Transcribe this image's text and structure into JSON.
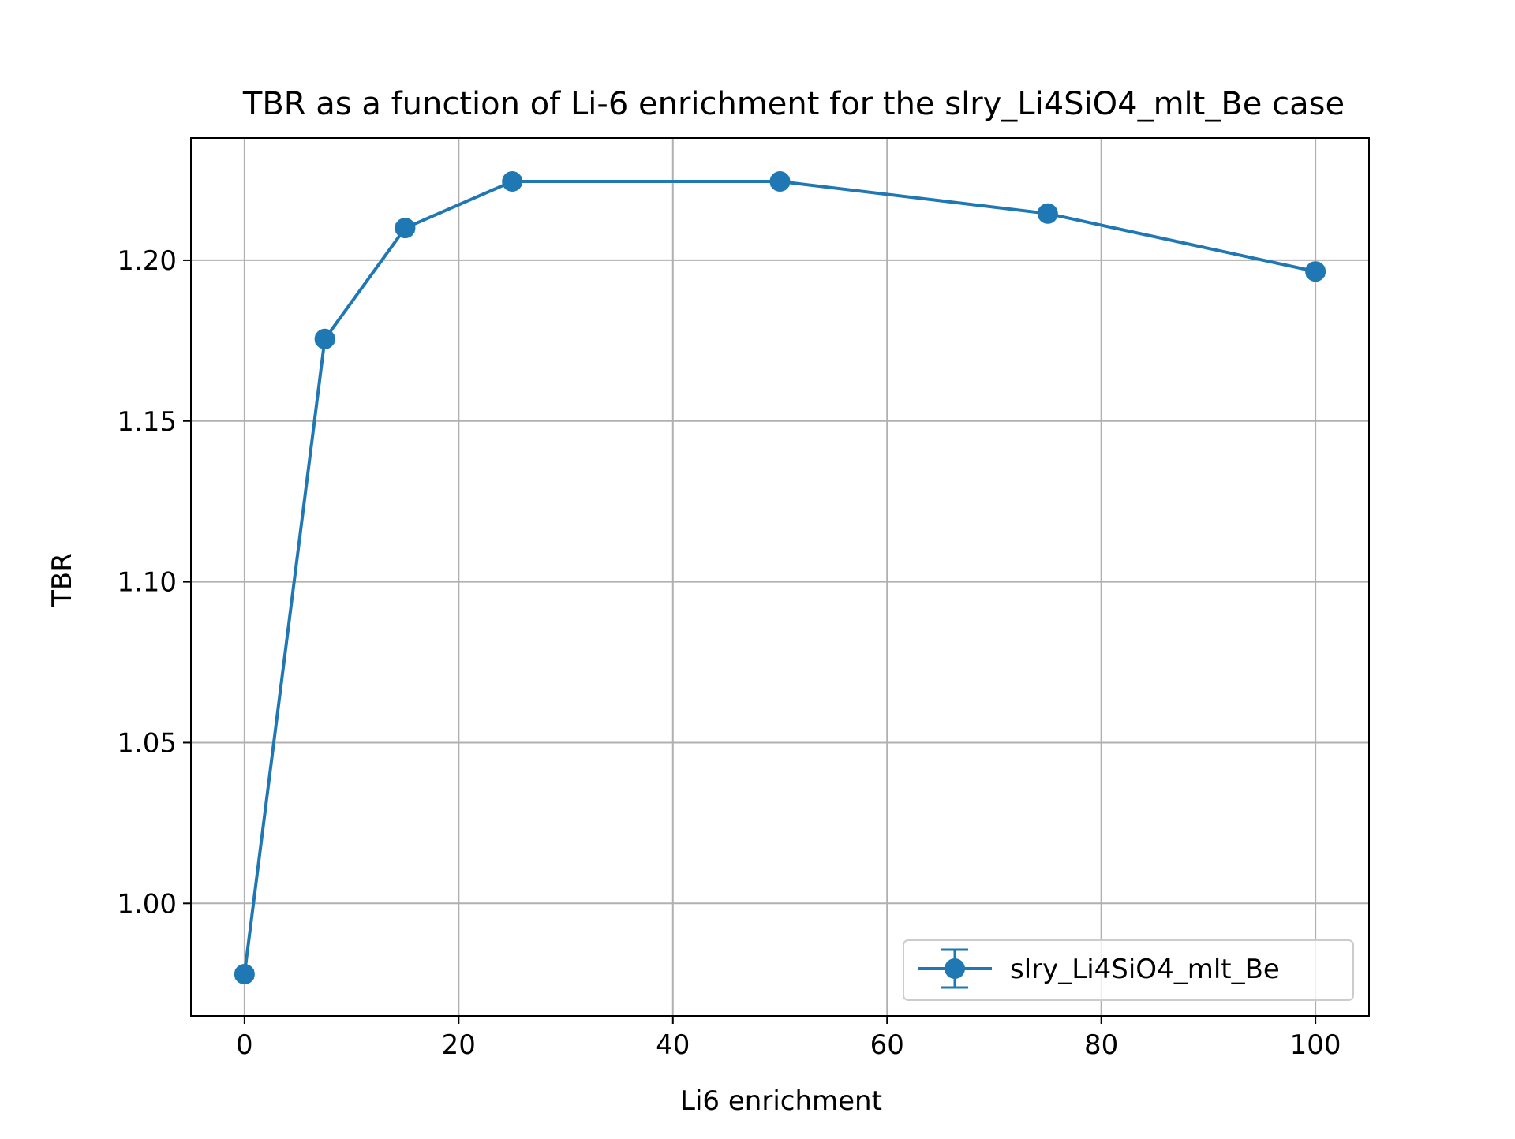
{
  "chart_data": {
    "type": "line",
    "title": "TBR as a function of Li-6 enrichment for the slry_Li4SiO4_mlt_Be case",
    "xlabel": "Li6 enrichment",
    "ylabel": "TBR",
    "xlim": [
      -5,
      105
    ],
    "ylim": [
      0.965,
      1.238
    ],
    "xticks": [
      0,
      20,
      40,
      60,
      80,
      100
    ],
    "xtick_labels": [
      "0",
      "20",
      "40",
      "60",
      "80",
      "100"
    ],
    "yticks": [
      1.0,
      1.05,
      1.1,
      1.15,
      1.2
    ],
    "ytick_labels": [
      "1.00",
      "1.05",
      "1.10",
      "1.15",
      "1.20"
    ],
    "grid": true,
    "legend_position": "lower-right",
    "series": [
      {
        "name": "slry_Li4SiO4_mlt_Be",
        "color": "#1f77b4",
        "marker": "circle",
        "error_bars": true,
        "x": [
          0,
          7.5,
          15,
          25,
          50,
          75,
          100
        ],
        "y": [
          0.978,
          1.1755,
          1.21,
          1.2245,
          1.2245,
          1.2145,
          1.1965
        ],
        "yerr": [
          0.0012,
          0.0012,
          0.0012,
          0.0012,
          0.0012,
          0.0012,
          0.0012
        ]
      }
    ]
  }
}
